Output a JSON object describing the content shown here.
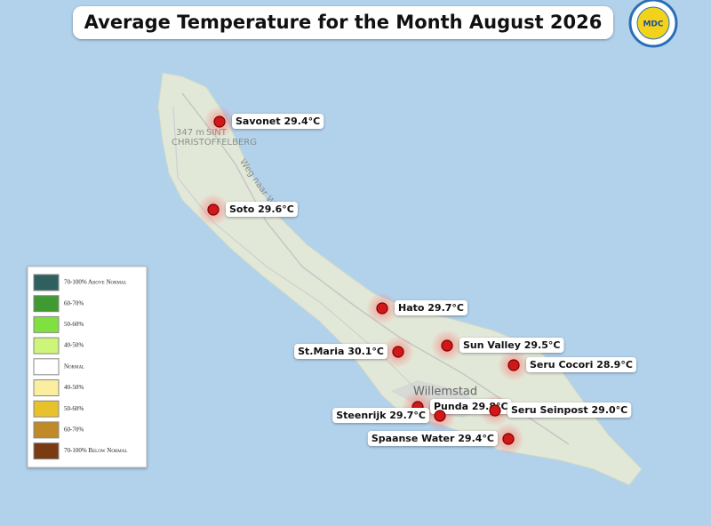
{
  "title": "Average Temperature for the Month August 2026",
  "logo": {
    "text": "MDC"
  },
  "map_labels": {
    "elevation": "347 m",
    "peak_line1": "SINT",
    "peak_line2": "CHRISTOFFELBERG",
    "road": "Weg naar W",
    "city": "Willemstad"
  },
  "stations": [
    {
      "label": "Savonet 29.4°C"
    },
    {
      "label": "Soto 29.6°C"
    },
    {
      "label": "Hato 29.7°C"
    },
    {
      "label": "St.Maria 30.1°C"
    },
    {
      "label": "Sun Valley 29.5°C"
    },
    {
      "label": "Seru Cocori 28.9°C"
    },
    {
      "label": "Punda 29.8°C"
    },
    {
      "label": "Steenrijk 29.7°C"
    },
    {
      "label": "Seru Seinpost 29.0°C"
    },
    {
      "label": "Spaanse Water 29.4°C"
    }
  ],
  "legend": [
    {
      "label": "70-100% Above Normal",
      "color": "#2f5f5f"
    },
    {
      "label": "60-70%",
      "color": "#3f9a32"
    },
    {
      "label": "50-60%",
      "color": "#7fe040"
    },
    {
      "label": "40-50%",
      "color": "#ccf57a"
    },
    {
      "label": "Normal",
      "color": "#ffffff"
    },
    {
      "label": "40-50%",
      "color": "#fbeea0"
    },
    {
      "label": "50-60%",
      "color": "#e8c22a"
    },
    {
      "label": "60-70%",
      "color": "#c08a28"
    },
    {
      "label": "70-100% Below Normal",
      "color": "#7a3a12"
    }
  ]
}
